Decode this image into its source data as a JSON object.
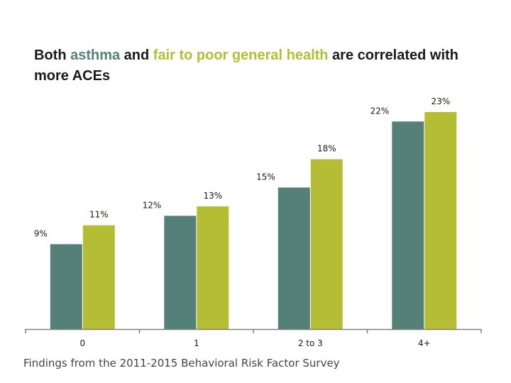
{
  "title": {
    "part1": "Both ",
    "highlight1": "asthma",
    "part2": " and ",
    "highlight2": "fair to poor general health",
    "part3": " are correlated with more ACEs"
  },
  "source": "Findings from the 2011-2015 Behavioral Risk Factor Survey",
  "colors": {
    "asthma": "#557f79",
    "health": "#b5bd34",
    "text": "#1a1a1a",
    "axis": "#808080"
  },
  "chart_data": {
    "type": "bar",
    "title": "Both asthma and fair to poor general health are correlated with more ACEs",
    "categories": [
      "0",
      "1",
      "2 to 3",
      "4+"
    ],
    "series": [
      {
        "name": "asthma",
        "values": [
          9,
          12,
          15,
          22
        ]
      },
      {
        "name": "fair to poor general health",
        "values": [
          11,
          13,
          18,
          23
        ]
      }
    ],
    "labels": [
      [
        "9%",
        "12%",
        "15%",
        "22%"
      ],
      [
        "11%",
        "13%",
        "18%",
        "23%"
      ]
    ],
    "xlabel": "",
    "ylabel": "",
    "ylim": [
      0,
      23
    ],
    "grid": false,
    "legend": "none"
  }
}
